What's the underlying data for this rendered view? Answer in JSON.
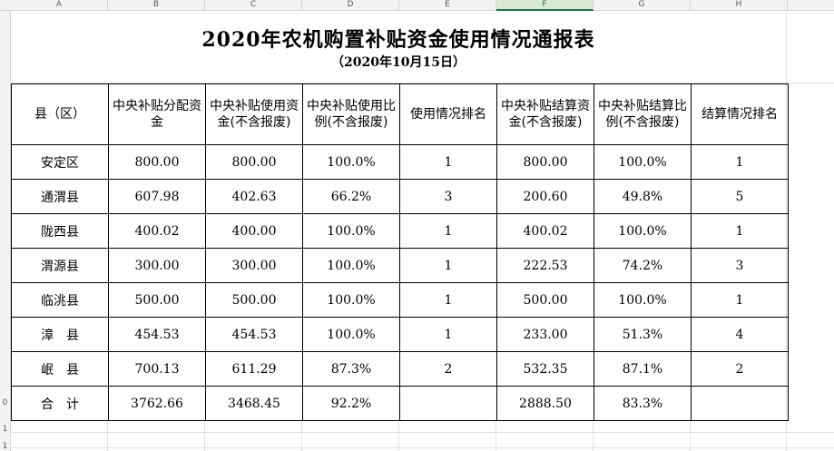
{
  "spreadsheet": {
    "columns": [
      "A",
      "B",
      "C",
      "D",
      "E",
      "F",
      "G",
      "H"
    ],
    "selected_column": "F",
    "row_numbers": [
      "0",
      "1",
      "1"
    ]
  },
  "report": {
    "title": "2020年农机购置补贴资金使用情况通报表",
    "subtitle": "（2020年10月15日）",
    "headers": [
      "县（区）",
      "中央补贴分配资金",
      "中央补贴使用资金(不含报废)",
      "中央补贴使用比例(不含报废)",
      "使用情况排名",
      "中央补贴结算资金(不含报废)",
      "中央补贴结算比例(不含报废)",
      "结算情况排名"
    ],
    "rows": [
      [
        "安定区",
        "800.00",
        "800.00",
        "100.0%",
        "1",
        "800.00",
        "100.0%",
        "1"
      ],
      [
        "通渭县",
        "607.98",
        "402.63",
        "66.2%",
        "3",
        "200.60",
        "49.8%",
        "5"
      ],
      [
        "陇西县",
        "400.02",
        "400.00",
        "100.0%",
        "1",
        "400.02",
        "100.0%",
        "1"
      ],
      [
        "渭源县",
        "300.00",
        "300.00",
        "100.0%",
        "1",
        "222.53",
        "74.2%",
        "3"
      ],
      [
        "临洮县",
        "500.00",
        "500.00",
        "100.0%",
        "1",
        "500.00",
        "100.0%",
        "1"
      ],
      [
        "漳　县",
        "454.53",
        "454.53",
        "100.0%",
        "1",
        "233.00",
        "51.3%",
        "4"
      ],
      [
        "岷　县",
        "700.13",
        "611.29",
        "87.3%",
        "2",
        "532.35",
        "87.1%",
        "2"
      ],
      [
        "合　计",
        "3762.66",
        "3468.45",
        "92.2%",
        "",
        "2888.50",
        "83.3%",
        ""
      ]
    ]
  }
}
